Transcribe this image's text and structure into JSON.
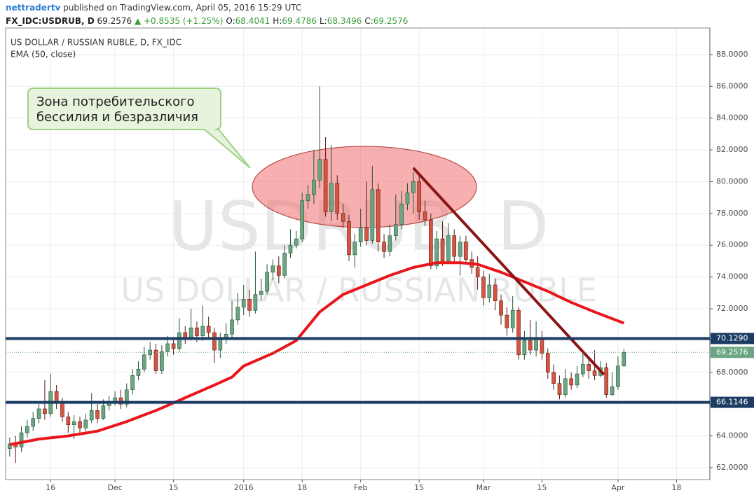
{
  "header": {
    "user": "nettradertv",
    "published": "published on TradingView.com, April 05, 2016 15:29 UTC",
    "symbol": "FX_IDC:USDRUB, D",
    "last": "69.2576",
    "change": "▲ +0.8535 (+1.25%)",
    "ohlc": [
      {
        "key": "O:",
        "value": "68.4041"
      },
      {
        "key": "H:",
        "value": "69.4786"
      },
      {
        "key": "L:",
        "value": "68.3496"
      },
      {
        "key": "C:",
        "value": "69.2576"
      }
    ]
  },
  "callout": [
    "Зона потребительского",
    "бессилия и безразличия"
  ],
  "chart_data": {
    "type": "candlestick",
    "title": "US DOLLAR / RUSSIAN RUBLE, D, FX_IDC",
    "watermark": "USDRUB, D",
    "watermark_sub": "US DOLLAR / RUSSIAN RUBLE",
    "up_color": "#6ba583",
    "down_color": "#d75442",
    "up_border": "#225437",
    "down_border": "#5b1a13",
    "open": [
      63.2,
      63.5,
      63.3,
      64.2,
      64.6,
      65.1,
      65.7,
      65.4,
      66.8,
      66.1,
      65.2,
      64.7,
      64.9,
      64.5,
      65.0,
      65.6,
      65.1,
      65.9,
      66.1,
      66.4,
      66.0,
      66.9,
      67.8,
      68.2,
      69.1,
      69.4,
      68.1,
      69.3,
      69.8,
      69.5,
      70.5,
      70.2,
      70.8,
      70.3,
      70.9,
      70.5,
      69.4,
      70.1,
      70.4,
      71.3,
      72.1,
      72.6,
      71.9,
      72.9,
      73.1,
      74.3,
      74.7,
      74.1,
      75.5,
      76.0,
      76.4,
      78.8,
      79.2,
      80.1,
      81.4,
      78.1,
      79.9,
      78.0,
      77.5,
      75.4,
      76.2,
      77.1,
      76.3,
      79.5,
      76.2,
      75.6,
      76.6,
      77.3,
      78.6,
      79.3,
      80.0,
      78.1,
      77.6,
      74.7,
      76.4,
      75.0,
      76.6,
      75.3,
      76.2,
      75.1,
      74.6,
      74.0,
      72.7,
      73.5,
      72.5,
      71.6,
      70.8,
      71.9,
      69.1,
      70.0,
      69.4,
      70.2,
      69.2,
      68.0,
      67.3,
      66.6,
      67.6,
      67.2,
      67.9,
      68.5,
      68.1,
      67.8,
      68.3,
      66.6,
      67.1,
      68.4041
    ],
    "high": [
      63.9,
      64.0,
      64.6,
      65.0,
      65.5,
      66.0,
      67.5,
      67.9,
      67.2,
      66.4,
      65.5,
      65.3,
      65.2,
      65.4,
      66.7,
      66.0,
      66.3,
      66.5,
      66.8,
      66.9,
      67.3,
      68.2,
      68.7,
      69.6,
      69.9,
      69.8,
      69.7,
      70.3,
      70.2,
      71.4,
      70.9,
      72.0,
      71.2,
      72.2,
      71.5,
      70.8,
      70.5,
      71.1,
      72.5,
      73.0,
      73.5,
      73.2,
      75.6,
      73.9,
      74.8,
      75.1,
      75.3,
      76.0,
      77.0,
      76.9,
      79.3,
      79.8,
      82.0,
      86.0,
      82.8,
      82.3,
      80.4,
      78.6,
      77.9,
      76.7,
      78.3,
      80.0,
      81.0,
      79.9,
      76.7,
      77.3,
      79.2,
      79.4,
      79.9,
      80.6,
      80.4,
      78.8,
      78.0,
      76.9,
      77.5,
      77.4,
      77.0,
      76.6,
      76.6,
      75.6,
      75.3,
      74.4,
      74.2,
      73.9,
      72.9,
      72.1,
      72.8,
      72.1,
      70.6,
      71.3,
      71.2,
      70.6,
      69.5,
      68.5,
      67.8,
      68.2,
      68.0,
      68.4,
      69.2,
      68.9,
      69.4,
      68.7,
      68.6,
      68.0,
      69.0,
      69.4786
    ],
    "low": [
      62.7,
      62.3,
      63.0,
      63.9,
      64.3,
      64.8,
      65.0,
      65.2,
      65.7,
      64.9,
      64.2,
      63.8,
      64.2,
      64.3,
      64.8,
      64.8,
      65.0,
      65.6,
      65.9,
      65.7,
      65.8,
      66.6,
      67.5,
      68.0,
      68.8,
      67.9,
      67.9,
      69.0,
      69.1,
      69.3,
      69.8,
      70.0,
      69.9,
      70.0,
      70.1,
      68.6,
      68.9,
      69.8,
      70.2,
      71.0,
      71.6,
      71.5,
      71.7,
      72.5,
      72.9,
      73.8,
      73.6,
      73.9,
      75.2,
      75.8,
      76.2,
      78.3,
      78.6,
      79.6,
      77.8,
      77.5,
      77.6,
      77.1,
      75.0,
      74.6,
      75.9,
      76.0,
      76.1,
      75.6,
      75.2,
      75.3,
      76.3,
      77.0,
      78.2,
      78.0,
      77.6,
      77.2,
      74.5,
      74.5,
      74.7,
      74.8,
      74.9,
      74.1,
      74.8,
      74.2,
      73.2,
      72.2,
      72.4,
      71.9,
      71.0,
      70.3,
      70.5,
      68.8,
      68.8,
      69.1,
      69.0,
      68.8,
      67.6,
      66.9,
      66.3,
      66.4,
      66.9,
      67.0,
      67.7,
      67.6,
      67.5,
      67.7,
      66.4,
      66.5,
      66.9,
      68.3496
    ],
    "close": [
      63.5,
      63.3,
      64.2,
      64.6,
      65.1,
      65.7,
      65.4,
      66.8,
      66.1,
      65.2,
      64.7,
      64.9,
      64.5,
      65.0,
      65.6,
      65.1,
      65.9,
      66.1,
      66.4,
      66.0,
      66.9,
      67.8,
      68.2,
      69.1,
      69.4,
      68.1,
      69.3,
      69.8,
      69.5,
      70.5,
      70.2,
      70.8,
      70.3,
      70.9,
      70.5,
      69.4,
      70.1,
      70.4,
      71.3,
      72.1,
      72.6,
      71.9,
      72.9,
      73.1,
      74.3,
      74.7,
      74.1,
      75.5,
      76.0,
      76.4,
      78.8,
      79.2,
      80.1,
      81.4,
      78.1,
      79.9,
      78.0,
      77.5,
      75.4,
      76.2,
      77.1,
      76.3,
      79.5,
      76.2,
      75.6,
      76.6,
      77.3,
      78.6,
      79.3,
      80.0,
      78.1,
      77.6,
      74.7,
      76.4,
      75.0,
      76.6,
      75.3,
      76.2,
      75.1,
      74.6,
      74.0,
      72.7,
      73.5,
      72.5,
      71.6,
      70.8,
      71.9,
      69.1,
      70.0,
      69.4,
      70.2,
      69.2,
      68.0,
      67.3,
      66.6,
      67.6,
      67.2,
      67.9,
      68.5,
      68.1,
      67.8,
      68.3,
      66.6,
      67.1,
      68.4,
      69.2576
    ],
    "series": [
      {
        "name": "EMA (50, close)",
        "color": "#e8151b",
        "x": [
          0,
          5,
          10,
          15,
          20,
          25,
          30,
          35,
          38,
          40,
          45,
          49,
          53,
          57,
          61,
          65,
          69,
          73,
          77,
          80,
          84,
          88,
          92,
          96,
          100,
          105
        ],
        "values": [
          63.45,
          63.8,
          64.0,
          64.3,
          64.9,
          65.6,
          66.4,
          67.2,
          67.7,
          68.4,
          69.2,
          70.0,
          71.8,
          72.9,
          73.5,
          74.1,
          74.6,
          74.9,
          74.9,
          74.8,
          74.3,
          73.7,
          73.1,
          72.4,
          71.8,
          71.1
        ]
      }
    ],
    "trend_line": {
      "x": [
        69,
        101.6
      ],
      "values": [
        80.86,
        67.86
      ],
      "color": "#8b1414"
    },
    "levels": [
      {
        "value": 70.129,
        "label": "70.1290",
        "color": "#1c3d63"
      },
      {
        "value": 66.1146,
        "label": "66.1146",
        "color": "#1c3d63"
      }
    ],
    "last_price": {
      "value": 69.2576,
      "label": "69.2576",
      "color": "#6ba583"
    },
    "xlim": [
      -0.7,
      119.7
    ],
    "xticks": [
      {
        "value": 7,
        "label": "16"
      },
      {
        "value": 18,
        "label": "Dec"
      },
      {
        "value": 28,
        "label": "15"
      },
      {
        "value": 40,
        "label": "2016"
      },
      {
        "value": 50,
        "label": "18"
      },
      {
        "value": 60,
        "label": "Feb"
      },
      {
        "value": 70,
        "label": "15"
      },
      {
        "value": 81,
        "label": "Mar"
      },
      {
        "value": 91,
        "label": "15"
      },
      {
        "value": 104,
        "label": "Apr"
      },
      {
        "value": 114,
        "label": "18"
      }
    ],
    "ylim": [
      61.25,
      89.67
    ],
    "yticks": [
      {
        "value": 62,
        "label": "62.0000"
      },
      {
        "value": 64,
        "label": "64.0000"
      },
      {
        "value": 66,
        "label": "66.0000"
      },
      {
        "value": 68,
        "label": "68.0000"
      },
      {
        "value": 70,
        "label": "70.0000"
      },
      {
        "value": 72,
        "label": "72.0000"
      },
      {
        "value": 74,
        "label": "74.0000"
      },
      {
        "value": 76,
        "label": "76.0000"
      },
      {
        "value": 78,
        "label": "78.0000"
      },
      {
        "value": 80,
        "label": "80.0000"
      },
      {
        "value": 82,
        "label": "82.0000"
      },
      {
        "value": 84,
        "label": "84.0000"
      },
      {
        "value": 86,
        "label": "86.0000"
      },
      {
        "value": 88,
        "label": "88.0000"
      }
    ],
    "grid": true
  }
}
